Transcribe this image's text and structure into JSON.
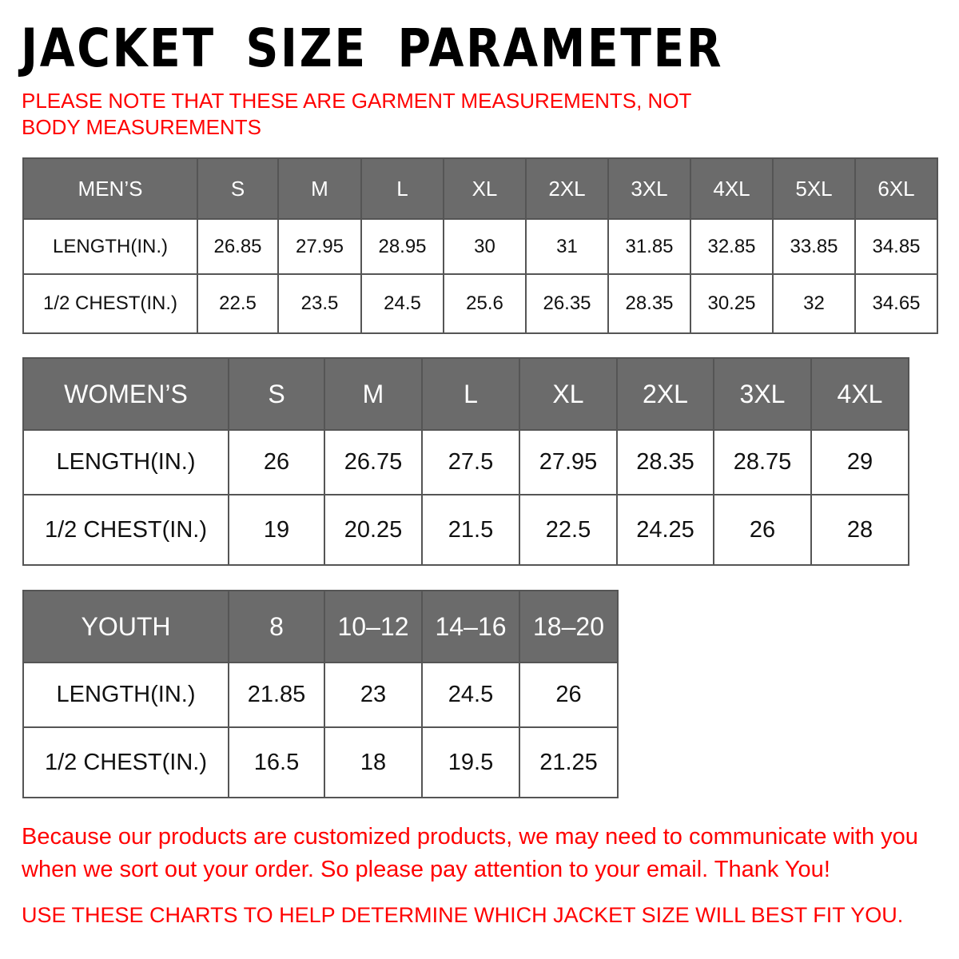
{
  "title": "JACKET SIZE PARAMETER",
  "note": "PLEASE NOTE THAT THESE ARE GARMENT MEASUREMENTS, NOT BODY MEASUREMENTS",
  "colors": {
    "header_bg": "#6b6b6b",
    "accent_text": "#ff0000"
  },
  "tables": [
    {
      "name": "men",
      "header": [
        "MEN’S",
        "S",
        "M",
        "L",
        "XL",
        "2XL",
        "3XL",
        "4XL",
        "5XL",
        "6XL"
      ],
      "rows": [
        [
          "LENGTH(IN.)",
          "26.85",
          "27.95",
          "28.95",
          "30",
          "31",
          "31.85",
          "32.85",
          "33.85",
          "34.85"
        ],
        [
          "1/2 CHEST(IN.)",
          "22.5",
          "23.5",
          "24.5",
          "25.6",
          "26.35",
          "28.35",
          "30.25",
          "32",
          "34.65"
        ]
      ]
    },
    {
      "name": "women",
      "header": [
        "WOMEN’S",
        "S",
        "M",
        "L",
        "XL",
        "2XL",
        "3XL",
        "4XL"
      ],
      "rows": [
        [
          "LENGTH(IN.)",
          "26",
          "26.75",
          "27.5",
          "27.95",
          "28.35",
          "28.75",
          "29"
        ],
        [
          "1/2 CHEST(IN.)",
          "19",
          "20.25",
          "21.5",
          "22.5",
          "24.25",
          "26",
          "28"
        ]
      ]
    },
    {
      "name": "youth",
      "header": [
        "YOUTH",
        "8",
        "10–12",
        "14–16",
        "18–20"
      ],
      "rows": [
        [
          "LENGTH(IN.)",
          "21.85",
          "23",
          "24.5",
          "26"
        ],
        [
          "1/2 CHEST(IN.)",
          "16.5",
          "18",
          "19.5",
          "21.25"
        ]
      ]
    }
  ],
  "footer": {
    "message": "Because our products are customized products, we may need to communicate with you when we sort out your order. So please pay attention to your email. Thank You!",
    "instruction": "USE THESE CHARTS TO HELP DETERMINE WHICH JACKET SIZE WILL BEST FIT YOU."
  }
}
